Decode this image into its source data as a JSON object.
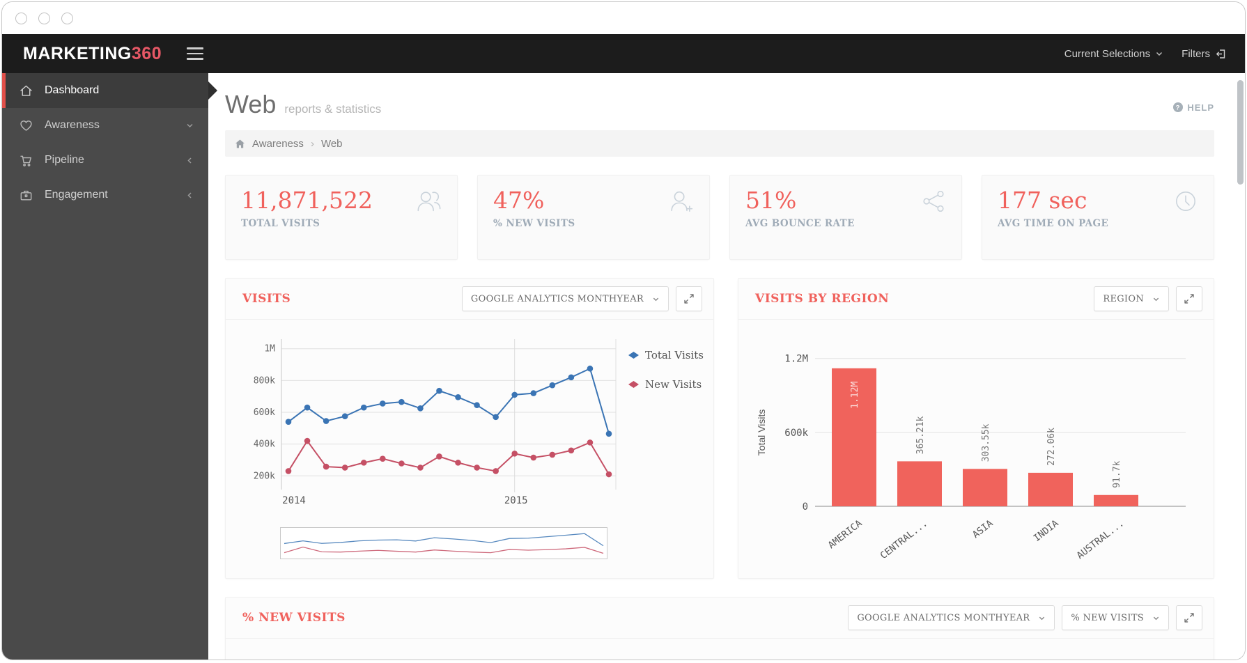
{
  "topbar": {
    "logo_primary": "MARKETING",
    "logo_accent": "360",
    "current_selections_label": "Current Selections",
    "filters_label": "Filters"
  },
  "sidebar": {
    "items": [
      {
        "label": "Dashboard",
        "icon": "home-icon",
        "active": true,
        "chevron": null
      },
      {
        "label": "Awareness",
        "icon": "heart-icon",
        "active": false,
        "chevron": "down"
      },
      {
        "label": "Pipeline",
        "icon": "cart-icon",
        "active": false,
        "chevron": "left"
      },
      {
        "label": "Engagement",
        "icon": "briefcase-icon",
        "active": false,
        "chevron": "left"
      }
    ]
  },
  "page_header": {
    "title": "Web",
    "subtitle": "reports & statistics",
    "help_label": "HELP"
  },
  "breadcrumb": {
    "items": [
      "Awareness",
      "Web"
    ],
    "separator": "›"
  },
  "stats": [
    {
      "value": "11,871,522",
      "label": "TOTAL VISITS",
      "icon": "users-icon"
    },
    {
      "value": "47%",
      "label": "% NEW VISITS",
      "icon": "user-plus-icon"
    },
    {
      "value": "51%",
      "label": "AVG BOUNCE RATE",
      "icon": "share-icon"
    },
    {
      "value": "177 sec",
      "label": "AVG TIME ON PAGE",
      "icon": "clock-icon"
    }
  ],
  "panels": {
    "visits": {
      "title": "VISITS",
      "dropdown_label": "GOOGLE ANALYTICS MONTHYEAR"
    },
    "region": {
      "title": "VISITS BY REGION",
      "dropdown_label": "REGION"
    },
    "new_visits": {
      "title": "% NEW VISITS",
      "dropdown1_label": "GOOGLE ANALYTICS MONTHYEAR",
      "dropdown2_label": "% NEW VISITS"
    }
  },
  "colors": {
    "accent": "#f0615c",
    "bar_fill": "#f0635c",
    "total_visits_line": "#3a74b4",
    "new_visits_line": "#c55065",
    "sidebar_active_bar": "#e2504a"
  },
  "chart_data": [
    {
      "type": "line",
      "title": "VISITS",
      "unit": "thousands",
      "ylim": [
        140,
        1060
      ],
      "y_ticks": [
        {
          "v": 200,
          "label": "200k"
        },
        {
          "v": 400,
          "label": "400k"
        },
        {
          "v": 600,
          "label": "600k"
        },
        {
          "v": 800,
          "label": "800k"
        },
        {
          "v": 1000,
          "label": "1M"
        }
      ],
      "x_labels": [
        {
          "index": 0,
          "label": "2014"
        },
        {
          "index": 12,
          "label": "2015"
        }
      ],
      "year_gridline_index": 12,
      "legend_position": "right",
      "has_navigator": true,
      "series": [
        {
          "name": "Total Visits",
          "color": "#3a74b4",
          "values": [
            540,
            630,
            545,
            575,
            630,
            655,
            665,
            625,
            735,
            695,
            645,
            570,
            710,
            720,
            770,
            820,
            875,
            465
          ]
        },
        {
          "name": "New Visits",
          "color": "#c55065",
          "values": [
            230,
            420,
            258,
            252,
            283,
            308,
            278,
            252,
            322,
            283,
            252,
            230,
            340,
            315,
            333,
            360,
            410,
            210
          ]
        }
      ]
    },
    {
      "type": "bar",
      "title": "VISITS BY REGION",
      "ylabel": "Total Visits",
      "ylim": [
        0,
        1300000
      ],
      "y_ticks": [
        {
          "v": 0,
          "label": "0"
        },
        {
          "v": 600000,
          "label": "600k"
        },
        {
          "v": 1200000,
          "label": "1.2M"
        }
      ],
      "categories": [
        "AMERICA",
        "CENTRAL...",
        "ASIA",
        "INDIA",
        "AUSTRAL..."
      ],
      "values": [
        1120000,
        365210,
        303550,
        272060,
        91700
      ],
      "value_labels": [
        "1.12M",
        "365.21k",
        "303.55k",
        "272.06k",
        "91.7k"
      ],
      "bar_color": "#f0635c",
      "grid": true
    }
  ]
}
